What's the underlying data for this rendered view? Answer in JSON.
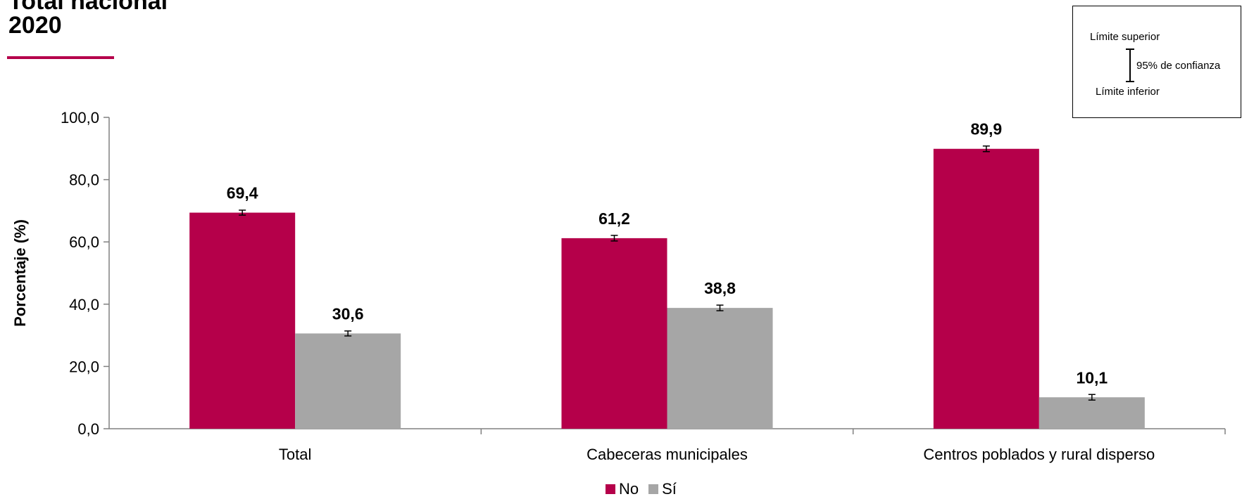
{
  "header": {
    "title_line1": "Total nacional",
    "title_line2": "2020",
    "accent_color": "#b5004a"
  },
  "ci_legend": {
    "upper": "Límite superior",
    "level": "95% de confianza",
    "lower": "Límite inferior"
  },
  "chart_data": {
    "type": "bar",
    "categories": [
      "Total",
      "Cabeceras municipales",
      "Centros poblados y rural disperso"
    ],
    "series": [
      {
        "name": "No",
        "color": "#b5004a",
        "values": [
          69.4,
          61.2,
          89.9
        ],
        "labels": [
          "69,4",
          "61,2",
          "89,9"
        ],
        "ci_low": [
          68.6,
          60.3,
          89.0
        ],
        "ci_high": [
          70.2,
          62.1,
          90.8
        ]
      },
      {
        "name": "Sí",
        "color": "#a6a6a6",
        "values": [
          30.6,
          38.8,
          10.1
        ],
        "labels": [
          "30,6",
          "38,8",
          "10,1"
        ],
        "ci_low": [
          29.8,
          37.9,
          9.2
        ],
        "ci_high": [
          31.4,
          39.7,
          11.0
        ]
      }
    ],
    "ylabel": "Porcentaje (%)",
    "ylim": [
      0,
      100
    ],
    "yticks": [
      0,
      20,
      40,
      60,
      80,
      100
    ],
    "ytick_labels": [
      "0,0",
      "20,0",
      "40,0",
      "60,0",
      "80,0",
      "100,0"
    ],
    "grid": false,
    "legend_position": "bottom-center"
  }
}
